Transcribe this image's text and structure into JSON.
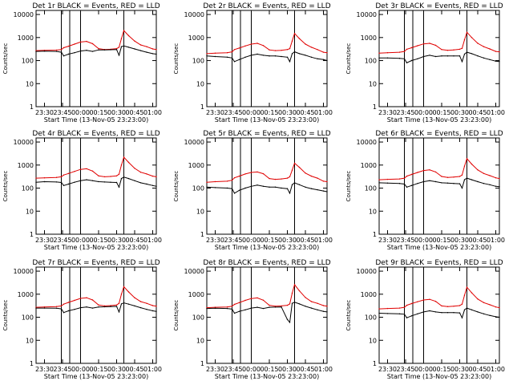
{
  "figure": {
    "xlabel": "Start Time (13-Nov-05 23:23:00)",
    "ylabel": "Counts/sec",
    "x_tick_labels": [
      "23:30",
      "23:45",
      "00:00",
      "00:15",
      "00:30",
      "00:45",
      "01:00"
    ],
    "y_tick_labels": [
      "1",
      "10",
      "100",
      "1000",
      "10000"
    ],
    "series_colors": {
      "events": "#000000",
      "lld": "#e00000"
    },
    "grid": false
  },
  "chart_data": [
    {
      "type": "line",
      "title": "Det 1r BLACK = Events, RED = LLD",
      "x": [
        "23:23",
        "23:30",
        "23:40",
        "23:44",
        "23:46",
        "23:50",
        "23:55",
        "00:00",
        "00:05",
        "00:10",
        "00:15",
        "00:20",
        "00:25",
        "00:30",
        "00:32",
        "00:34",
        "00:36",
        "00:40",
        "00:45",
        "00:50",
        "00:55",
        "01:00",
        "01:03"
      ],
      "series": [
        {
          "values": [
            270,
            280,
            285,
            300,
            360,
            420,
            520,
            640,
            680,
            540,
            330,
            300,
            310,
            330,
            380,
            900,
            2000,
            1200,
            700,
            480,
            400,
            320,
            300
          ]
        },
        {
          "values": [
            250,
            255,
            250,
            230,
            160,
            190,
            220,
            260,
            280,
            250,
            290,
            290,
            295,
            300,
            170,
            400,
            430,
            380,
            320,
            270,
            230,
            200,
            190
          ]
        }
      ],
      "ylim": [
        1,
        15000
      ],
      "log_y": true,
      "vlines": [
        "23:44",
        "23:51",
        "00:00",
        "00:36"
      ]
    },
    {
      "type": "line",
      "title": "Det 2r BLACK = Events, RED = LLD",
      "x": [
        "23:23",
        "23:30",
        "23:40",
        "23:44",
        "23:46",
        "23:50",
        "23:55",
        "00:00",
        "00:05",
        "00:10",
        "00:15",
        "00:20",
        "00:25",
        "00:30",
        "00:32",
        "00:34",
        "00:36",
        "00:40",
        "00:45",
        "00:50",
        "00:55",
        "01:00",
        "01:03"
      ],
      "series": [
        {
          "values": [
            200,
            210,
            220,
            240,
            300,
            350,
            430,
            520,
            560,
            450,
            290,
            270,
            280,
            300,
            330,
            700,
            1500,
            900,
            520,
            380,
            300,
            230,
            220
          ]
        },
        {
          "values": [
            160,
            150,
            140,
            130,
            90,
            110,
            140,
            170,
            190,
            170,
            160,
            160,
            150,
            140,
            90,
            200,
            240,
            200,
            170,
            140,
            120,
            110,
            100
          ]
        }
      ],
      "ylim": [
        1,
        15000
      ],
      "log_y": true,
      "vlines": [
        "23:44",
        "23:51",
        "00:00",
        "00:36"
      ]
    },
    {
      "type": "line",
      "title": "Det 3r BLACK = Events, RED = LLD",
      "x": [
        "23:23",
        "23:30",
        "23:40",
        "23:44",
        "23:46",
        "23:50",
        "23:55",
        "00:00",
        "00:05",
        "00:10",
        "00:15",
        "00:20",
        "00:25",
        "00:30",
        "00:32",
        "00:34",
        "00:36",
        "00:40",
        "00:45",
        "00:50",
        "00:55",
        "01:00",
        "01:03"
      ],
      "series": [
        {
          "values": [
            210,
            220,
            230,
            250,
            310,
            360,
            440,
            530,
            560,
            460,
            300,
            280,
            290,
            310,
            340,
            800,
            1700,
            1000,
            560,
            400,
            320,
            250,
            240
          ]
        },
        {
          "values": [
            130,
            130,
            125,
            120,
            80,
            100,
            120,
            150,
            170,
            150,
            160,
            160,
            160,
            160,
            90,
            190,
            230,
            200,
            160,
            130,
            110,
            95,
            90
          ]
        }
      ],
      "ylim": [
        1,
        15000
      ],
      "log_y": true,
      "vlines": [
        "23:44",
        "23:51",
        "00:00",
        "00:36"
      ]
    },
    {
      "type": "line",
      "title": "Det 4r BLACK = Events, RED = LLD",
      "x": [
        "23:23",
        "23:30",
        "23:40",
        "23:44",
        "23:46",
        "23:50",
        "23:55",
        "00:00",
        "00:05",
        "00:10",
        "00:15",
        "00:20",
        "00:25",
        "00:30",
        "00:32",
        "00:34",
        "00:36",
        "00:40",
        "00:45",
        "00:50",
        "00:55",
        "01:00",
        "01:03"
      ],
      "series": [
        {
          "values": [
            270,
            280,
            290,
            310,
            370,
            430,
            530,
            650,
            690,
            550,
            340,
            310,
            320,
            340,
            400,
            1000,
            2200,
            1300,
            720,
            490,
            410,
            330,
            310
          ]
        },
        {
          "values": [
            180,
            190,
            185,
            175,
            130,
            150,
            180,
            210,
            230,
            210,
            190,
            185,
            180,
            175,
            110,
            260,
            300,
            260,
            210,
            170,
            150,
            130,
            120
          ]
        }
      ],
      "ylim": [
        1,
        15000
      ],
      "log_y": true,
      "vlines": [
        "23:44",
        "23:51",
        "00:00",
        "00:36"
      ]
    },
    {
      "type": "line",
      "title": "Det 5r BLACK = Events, RED = LLD",
      "x": [
        "23:23",
        "23:30",
        "23:40",
        "23:44",
        "23:46",
        "23:50",
        "23:55",
        "00:00",
        "00:05",
        "00:10",
        "00:15",
        "00:20",
        "00:25",
        "00:30",
        "00:32",
        "00:34",
        "00:36",
        "00:40",
        "00:45",
        "00:50",
        "00:55",
        "01:00",
        "01:03"
      ],
      "series": [
        {
          "values": [
            180,
            190,
            200,
            220,
            280,
            330,
            410,
            480,
            500,
            420,
            260,
            240,
            250,
            270,
            310,
            600,
            1200,
            800,
            450,
            330,
            270,
            200,
            190
          ]
        },
        {
          "values": [
            110,
            105,
            100,
            95,
            60,
            80,
            100,
            120,
            135,
            120,
            110,
            110,
            100,
            95,
            60,
            140,
            170,
            140,
            110,
            95,
            85,
            75,
            70
          ]
        }
      ],
      "ylim": [
        1,
        15000
      ],
      "log_y": true,
      "vlines": [
        "23:44",
        "23:51",
        "00:00",
        "00:36"
      ]
    },
    {
      "type": "line",
      "title": "Det 6r BLACK = Events, RED = LLD",
      "x": [
        "23:23",
        "23:30",
        "23:40",
        "23:44",
        "23:46",
        "23:50",
        "23:55",
        "00:00",
        "00:05",
        "00:10",
        "00:15",
        "00:20",
        "00:25",
        "00:30",
        "00:32",
        "00:34",
        "00:36",
        "00:40",
        "00:45",
        "00:50",
        "00:55",
        "01:00",
        "01:03"
      ],
      "series": [
        {
          "values": [
            230,
            240,
            250,
            270,
            330,
            390,
            480,
            580,
            620,
            500,
            320,
            290,
            300,
            320,
            370,
            900,
            1900,
            1100,
            620,
            430,
            350,
            280,
            260
          ]
        },
        {
          "values": [
            170,
            165,
            160,
            150,
            110,
            130,
            160,
            190,
            210,
            190,
            170,
            165,
            160,
            155,
            100,
            230,
            270,
            230,
            190,
            160,
            140,
            120,
            115
          ]
        }
      ],
      "ylim": [
        1,
        15000
      ],
      "log_y": true,
      "vlines": [
        "23:44",
        "23:51",
        "00:00",
        "00:36"
      ]
    },
    {
      "type": "line",
      "title": "Det 7r BLACK = Events, RED = LLD",
      "x": [
        "23:23",
        "23:30",
        "23:40",
        "23:44",
        "23:46",
        "23:50",
        "23:55",
        "00:00",
        "00:05",
        "00:10",
        "00:15",
        "00:20",
        "00:25",
        "00:30",
        "00:32",
        "00:34",
        "00:36",
        "00:40",
        "00:45",
        "00:50",
        "00:55",
        "01:00",
        "01:03"
      ],
      "series": [
        {
          "values": [
            270,
            280,
            290,
            310,
            370,
            440,
            540,
            660,
            700,
            560,
            340,
            310,
            320,
            340,
            400,
            1000,
            2100,
            1250,
            700,
            480,
            400,
            320,
            300
          ]
        },
        {
          "values": [
            250,
            250,
            245,
            230,
            160,
            190,
            220,
            260,
            280,
            250,
            280,
            285,
            290,
            295,
            170,
            380,
            420,
            370,
            310,
            260,
            220,
            190,
            180
          ]
        }
      ],
      "ylim": [
        1,
        15000
      ],
      "log_y": true,
      "vlines": [
        "23:44",
        "23:51",
        "00:00",
        "00:36"
      ]
    },
    {
      "type": "line",
      "title": "Det 8r BLACK = Events, RED = LLD",
      "x": [
        "23:23",
        "23:30",
        "23:40",
        "23:44",
        "23:46",
        "23:50",
        "23:55",
        "00:00",
        "00:05",
        "00:10",
        "00:15",
        "00:20",
        "00:25",
        "00:30",
        "00:32",
        "00:34",
        "00:36",
        "00:40",
        "00:45",
        "00:50",
        "00:55",
        "01:00",
        "01:03"
      ],
      "series": [
        {
          "values": [
            260,
            270,
            280,
            300,
            360,
            430,
            540,
            650,
            690,
            550,
            330,
            300,
            310,
            330,
            380,
            1100,
            2600,
            1400,
            720,
            480,
            400,
            320,
            300
          ]
        },
        {
          "values": [
            240,
            245,
            240,
            225,
            150,
            180,
            210,
            250,
            270,
            240,
            270,
            275,
            280,
            80,
            60,
            400,
            450,
            380,
            300,
            250,
            210,
            180,
            170
          ]
        }
      ],
      "ylim": [
        1,
        15000
      ],
      "log_y": true,
      "vlines": [
        "23:44",
        "23:51",
        "00:00",
        "00:36"
      ]
    },
    {
      "type": "line",
      "title": "Det 9r BLACK = Events, RED = LLD",
      "x": [
        "23:23",
        "23:30",
        "23:40",
        "23:44",
        "23:46",
        "23:50",
        "23:55",
        "00:00",
        "00:05",
        "00:10",
        "00:15",
        "00:20",
        "00:25",
        "00:30",
        "00:32",
        "00:34",
        "00:36",
        "00:40",
        "00:45",
        "00:50",
        "00:55",
        "01:00",
        "01:03"
      ],
      "series": [
        {
          "values": [
            230,
            240,
            250,
            270,
            330,
            390,
            470,
            560,
            600,
            490,
            310,
            290,
            300,
            320,
            370,
            900,
            2000,
            1150,
            620,
            430,
            350,
            280,
            260
          ]
        },
        {
          "values": [
            150,
            145,
            140,
            135,
            95,
            115,
            140,
            170,
            190,
            170,
            160,
            160,
            160,
            155,
            95,
            210,
            250,
            210,
            170,
            140,
            120,
            105,
            100
          ]
        }
      ],
      "ylim": [
        1,
        15000
      ],
      "log_y": true,
      "vlines": [
        "23:44",
        "23:51",
        "00:00",
        "00:36"
      ]
    }
  ]
}
